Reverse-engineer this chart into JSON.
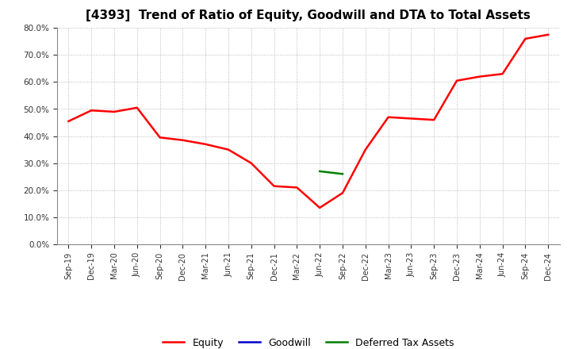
{
  "title": "[4393]  Trend of Ratio of Equity, Goodwill and DTA to Total Assets",
  "title_fontsize": 11,
  "background_color": "#ffffff",
  "plot_bg_color": "#ffffff",
  "grid_color": "#aaaaaa",
  "x_labels": [
    "Sep-19",
    "Dec-19",
    "Mar-20",
    "Jun-20",
    "Sep-20",
    "Dec-20",
    "Mar-21",
    "Jun-21",
    "Sep-21",
    "Dec-21",
    "Mar-22",
    "Jun-22",
    "Sep-22",
    "Dec-22",
    "Mar-23",
    "Jun-23",
    "Sep-23",
    "Dec-23",
    "Mar-24",
    "Jun-24",
    "Sep-24",
    "Dec-24"
  ],
  "equity": [
    45.5,
    49.5,
    49.0,
    50.5,
    39.5,
    38.5,
    37.0,
    35.0,
    30.0,
    21.5,
    21.0,
    13.5,
    19.0,
    35.0,
    47.0,
    46.5,
    46.0,
    60.5,
    62.0,
    63.0,
    76.0,
    77.5
  ],
  "goodwill": [
    null,
    null,
    null,
    null,
    null,
    null,
    null,
    null,
    null,
    null,
    null,
    null,
    null,
    null,
    null,
    null,
    null,
    null,
    null,
    null,
    null,
    null
  ],
  "dta": [
    null,
    null,
    null,
    null,
    null,
    null,
    null,
    null,
    null,
    null,
    null,
    27.0,
    26.0,
    null,
    null,
    null,
    null,
    null,
    null,
    null,
    null,
    null
  ],
  "equity_color": "#ff0000",
  "goodwill_color": "#0000cc",
  "dta_color": "#008000",
  "ylim": [
    0,
    80
  ],
  "yticks": [
    0.0,
    10.0,
    20.0,
    30.0,
    40.0,
    50.0,
    60.0,
    70.0,
    80.0
  ],
  "legend_equity": "Equity",
  "legend_goodwill": "Goodwill",
  "legend_dta": "Deferred Tax Assets",
  "linewidth": 1.8
}
